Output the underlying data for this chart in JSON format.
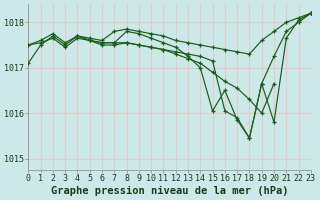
{
  "title": "Graphe pression niveau de la mer (hPa)",
  "bg_color": "#cce8e8",
  "grid_color": "#e8c8c8",
  "line_color": "#1a5c1a",
  "series": [
    {
      "x": [
        0,
        1,
        2,
        3,
        4,
        5,
        6,
        7,
        8,
        9,
        10,
        11,
        12,
        13,
        14,
        15,
        16,
        17,
        18,
        19,
        20,
        21,
        22,
        23
      ],
      "y": [
        1017.1,
        1017.5,
        1017.7,
        1017.5,
        1017.7,
        1017.6,
        1017.55,
        1017.55,
        1017.8,
        1017.75,
        1017.65,
        1017.55,
        1017.45,
        1017.25,
        1017.0,
        1016.05,
        1016.5,
        1015.85,
        1015.45,
        1016.65,
        1017.25,
        1017.8,
        1018.0,
        1018.2
      ]
    },
    {
      "x": [
        0,
        1,
        2,
        3,
        4,
        5,
        6,
        7,
        8,
        9,
        10,
        11,
        12,
        13,
        14,
        15,
        16,
        17,
        18,
        19,
        20
      ],
      "y": [
        1017.5,
        1017.55,
        1017.65,
        1017.45,
        1017.65,
        1017.6,
        1017.55,
        1017.55,
        1017.55,
        1017.5,
        1017.45,
        1017.4,
        1017.3,
        1017.2,
        1017.1,
        1016.9,
        1016.7,
        1016.55,
        1016.3,
        1016.0,
        1016.65
      ]
    },
    {
      "x": [
        0,
        1,
        2,
        3,
        4,
        5,
        6,
        7,
        8,
        9,
        10,
        11,
        12,
        13,
        14,
        15,
        16,
        17,
        18,
        19,
        20,
        21,
        22,
        23
      ],
      "y": [
        1017.5,
        1017.6,
        1017.75,
        1017.55,
        1017.7,
        1017.65,
        1017.6,
        1017.8,
        1017.85,
        1017.8,
        1017.75,
        1017.7,
        1017.6,
        1017.55,
        1017.5,
        1017.45,
        1017.4,
        1017.35,
        1017.3,
        1017.6,
        1017.8,
        1018.0,
        1018.1,
        1018.2
      ]
    },
    {
      "x": [
        4,
        5,
        6,
        7,
        8,
        9,
        10,
        11,
        12,
        13,
        14,
        15,
        16,
        17,
        18,
        19,
        20,
        21,
        22,
        23
      ],
      "y": [
        1017.7,
        1017.6,
        1017.5,
        1017.5,
        1017.55,
        1017.5,
        1017.45,
        1017.4,
        1017.35,
        1017.3,
        1017.25,
        1017.15,
        1016.05,
        1015.9,
        1015.45,
        1016.65,
        1015.8,
        1017.65,
        1018.05,
        1018.2
      ]
    }
  ],
  "yticks": [
    1015,
    1016,
    1017,
    1018
  ],
  "xticks": [
    0,
    1,
    2,
    3,
    4,
    5,
    6,
    7,
    8,
    9,
    10,
    11,
    12,
    13,
    14,
    15,
    16,
    17,
    18,
    19,
    20,
    21,
    22,
    23
  ],
  "xlim": [
    0,
    23
  ],
  "ylim": [
    1014.75,
    1018.4
  ],
  "tick_fontsize": 6,
  "xlabel_fontsize": 7.5
}
